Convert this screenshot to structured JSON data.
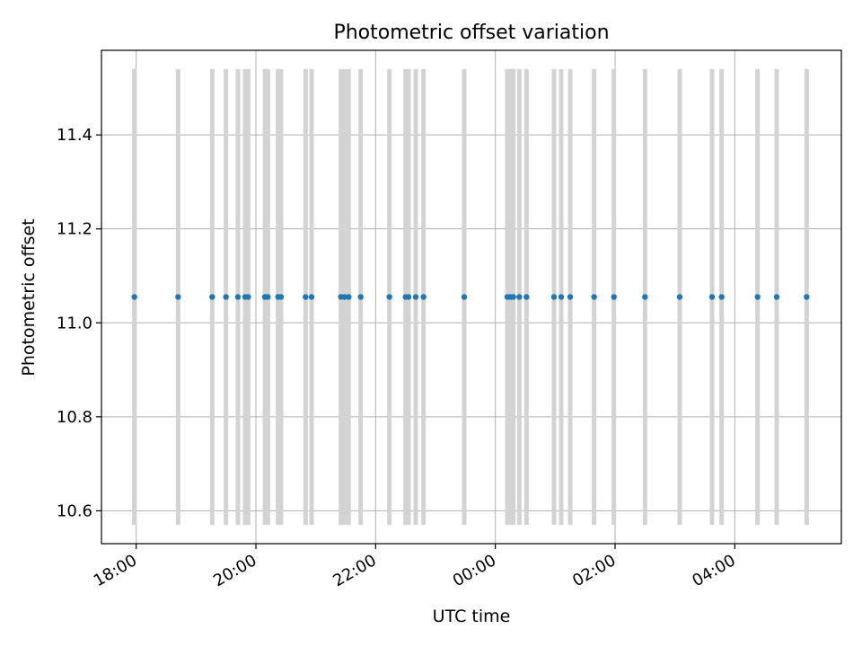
{
  "chart_data": {
    "type": "scatter",
    "title": "Photometric offset variation",
    "xlabel": "UTC time",
    "ylabel": "Photometric offset",
    "grid": true,
    "ylim": [
      10.53,
      11.58
    ],
    "xlim_hours": [
      17.42,
      29.78
    ],
    "yticks": [
      {
        "value": 10.6,
        "label": "10.6"
      },
      {
        "value": 10.8,
        "label": "10.8"
      },
      {
        "value": 11.0,
        "label": "11.0"
      },
      {
        "value": 11.2,
        "label": "11.2"
      },
      {
        "value": 11.4,
        "label": "11.4"
      }
    ],
    "xticks": [
      {
        "value": 18,
        "label": "18:00"
      },
      {
        "value": 20,
        "label": "20:00"
      },
      {
        "value": 22,
        "label": "22:00"
      },
      {
        "value": 24,
        "label": "00:00"
      },
      {
        "value": 26,
        "label": "02:00"
      },
      {
        "value": 28,
        "label": "04:00"
      }
    ],
    "error_low": 10.57,
    "error_high": 11.54,
    "point_color": "#1f77b4",
    "errorbar_color": "#d3d3d3",
    "x_times": [
      "17:58",
      "18:42",
      "19:16",
      "19:30",
      "19:42",
      "19:49",
      "19:52",
      "20:09",
      "20:12",
      "20:22",
      "20:25",
      "20:50",
      "20:56",
      "21:25",
      "21:29",
      "21:33",
      "21:45",
      "22:14",
      "22:30",
      "22:33",
      "22:40",
      "22:48",
      "23:29",
      "00:12",
      "00:15",
      "00:18",
      "00:24",
      "00:31",
      "00:59",
      "01:06",
      "01:15",
      "01:39",
      "01:59",
      "02:30",
      "03:05",
      "03:37",
      "03:47",
      "04:23",
      "04:42",
      "05:12"
    ],
    "x": [
      17.97,
      18.7,
      19.27,
      19.5,
      19.7,
      19.82,
      19.87,
      20.15,
      20.2,
      20.37,
      20.42,
      20.83,
      20.93,
      21.42,
      21.48,
      21.55,
      21.75,
      22.23,
      22.5,
      22.55,
      22.67,
      22.8,
      23.48,
      24.2,
      24.25,
      24.3,
      24.4,
      24.52,
      24.98,
      25.1,
      25.25,
      25.65,
      25.98,
      26.5,
      27.08,
      27.62,
      27.78,
      28.38,
      28.7,
      29.2
    ],
    "y": [
      11.055,
      11.055,
      11.055,
      11.055,
      11.055,
      11.055,
      11.055,
      11.055,
      11.055,
      11.055,
      11.055,
      11.055,
      11.055,
      11.055,
      11.055,
      11.055,
      11.055,
      11.055,
      11.055,
      11.055,
      11.055,
      11.055,
      11.055,
      11.055,
      11.055,
      11.055,
      11.055,
      11.055,
      11.055,
      11.055,
      11.055,
      11.055,
      11.055,
      11.055,
      11.055,
      11.055,
      11.055,
      11.055,
      11.055,
      11.055
    ]
  }
}
